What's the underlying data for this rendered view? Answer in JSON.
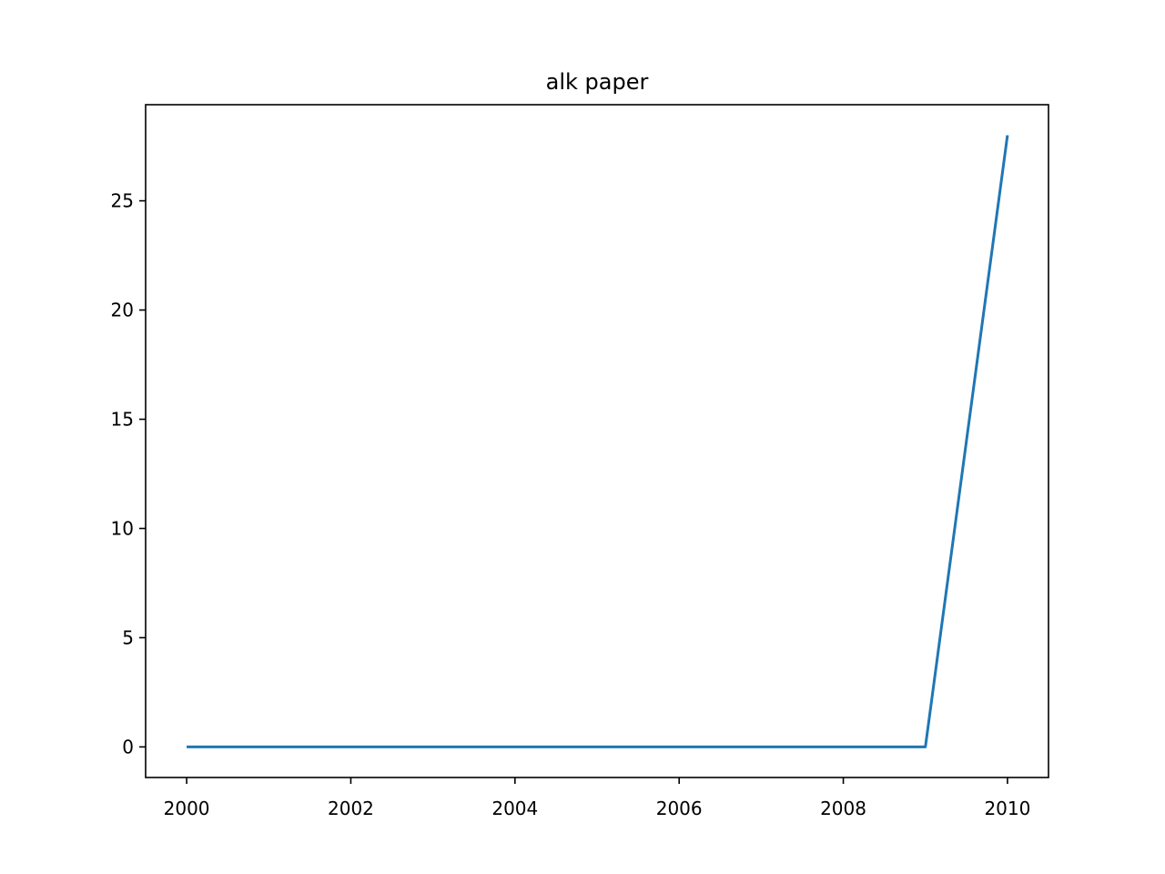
{
  "chart_data": {
    "type": "line",
    "title": "alk paper",
    "xlabel": "",
    "ylabel": "",
    "x": [
      2000,
      2001,
      2002,
      2003,
      2004,
      2005,
      2006,
      2007,
      2008,
      2009,
      2010
    ],
    "series": [
      {
        "values": [
          0,
          0,
          0,
          0,
          0,
          0,
          0,
          0,
          0,
          0,
          28
        ],
        "color": "#1f77b4"
      }
    ],
    "xlim": [
      1999.5,
      2010.5
    ],
    "ylim": [
      -1.4,
      29.4
    ],
    "xticks": [
      2000,
      2002,
      2004,
      2006,
      2008,
      2010
    ],
    "xtick_labels": [
      "2000",
      "2002",
      "2004",
      "2006",
      "2008",
      "2010"
    ],
    "yticks": [
      0,
      5,
      10,
      15,
      20,
      25
    ],
    "ytick_labels": [
      "0",
      "5",
      "10",
      "15",
      "20",
      "25"
    ],
    "grid": false,
    "legend": "none"
  }
}
